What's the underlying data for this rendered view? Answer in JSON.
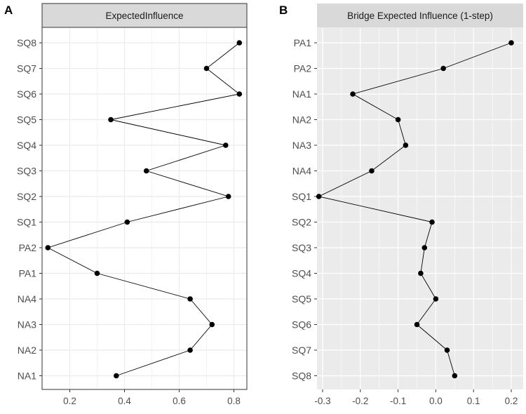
{
  "panels": {
    "a": {
      "letter": "A"
    },
    "b": {
      "letter": "B"
    }
  },
  "colors": {
    "strip": "#d9d9d9",
    "grid": "#ebebeb",
    "panel_b_bg": "#ebebeb",
    "point": "#000000",
    "tick_text": "#4d4d4d"
  },
  "chart_data": [
    {
      "type": "line",
      "panel": "A",
      "title": "ExpectedInfluence",
      "background": "white",
      "categories": [
        "SQ8",
        "SQ7",
        "SQ6",
        "SQ5",
        "SQ4",
        "SQ3",
        "SQ2",
        "SQ1",
        "PA2",
        "PA1",
        "NA4",
        "NA3",
        "NA2",
        "NA1"
      ],
      "values": [
        0.82,
        0.7,
        0.82,
        0.35,
        0.77,
        0.48,
        0.78,
        0.41,
        0.12,
        0.3,
        0.64,
        0.72,
        0.64,
        0.37
      ],
      "xlim": [
        0.1,
        0.85
      ],
      "xticks": [
        0.2,
        0.4,
        0.6,
        0.8
      ],
      "xtick_labels": [
        "0.2",
        "0.4",
        "0.6",
        "0.8"
      ],
      "grid": true
    },
    {
      "type": "line",
      "panel": "B",
      "title": "Bridge Expected Influence (1-step)",
      "background": "grey",
      "categories": [
        "PA1",
        "PA2",
        "NA1",
        "NA2",
        "NA3",
        "NA4",
        "SQ1",
        "SQ2",
        "SQ3",
        "SQ4",
        "SQ5",
        "SQ6",
        "SQ7",
        "SQ8"
      ],
      "values": [
        0.2,
        0.02,
        -0.22,
        -0.1,
        -0.08,
        -0.17,
        -0.31,
        -0.01,
        -0.03,
        -0.04,
        0.0,
        -0.05,
        0.03,
        0.05
      ],
      "xlim": [
        -0.33,
        0.22
      ],
      "xticks": [
        -0.3,
        -0.2,
        -0.1,
        0.0,
        0.1,
        0.2
      ],
      "xtick_labels": [
        "-0.3",
        "-0.2",
        "-0.1",
        "0.0",
        "0.1",
        "0.2"
      ],
      "grid": true
    }
  ]
}
